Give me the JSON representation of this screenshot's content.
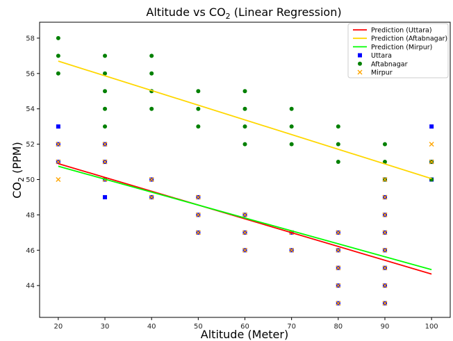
{
  "chart_data": {
    "type": "scatter",
    "title": "Altitude vs CO",
    "title_sub": "2",
    "title_suffix": " (Linear Regression)",
    "xlabel": "Altitude (Meter)",
    "ylabel": "CO",
    "ylabel_sub": "2",
    "ylabel_suffix": " (PPM)",
    "xlim": [
      16,
      104
    ],
    "ylim": [
      42.2,
      58.9
    ],
    "xticks": [
      20,
      30,
      40,
      50,
      60,
      70,
      80,
      90,
      100
    ],
    "yticks": [
      44,
      46,
      48,
      50,
      52,
      54,
      56,
      58
    ],
    "grid": false,
    "legend_position": "top-right",
    "regression_lines": [
      {
        "name": "Prediction (Uttara)",
        "color": "#ff0000",
        "x": [
          20,
          100
        ],
        "y": [
          50.9,
          44.65
        ]
      },
      {
        "name": "Prediction (Aftabnagar)",
        "color": "#ffd700",
        "x": [
          20,
          100
        ],
        "y": [
          56.7,
          50.05
        ]
      },
      {
        "name": "Prediction (Mirpur)",
        "color": "#00ff00",
        "x": [
          20,
          100
        ],
        "y": [
          50.75,
          44.9
        ]
      }
    ],
    "series": [
      {
        "name": "Uttara",
        "marker": "square",
        "color": "#0000ff",
        "points": [
          [
            20,
            53
          ],
          [
            20,
            52
          ],
          [
            20,
            51
          ],
          [
            30,
            52
          ],
          [
            30,
            51
          ],
          [
            30,
            50
          ],
          [
            30,
            49
          ],
          [
            40,
            50
          ],
          [
            40,
            49
          ],
          [
            50,
            49
          ],
          [
            50,
            48
          ],
          [
            50,
            47
          ],
          [
            60,
            48
          ],
          [
            60,
            47
          ],
          [
            60,
            46
          ],
          [
            70,
            47
          ],
          [
            70,
            46
          ],
          [
            80,
            47
          ],
          [
            80,
            46
          ],
          [
            80,
            45
          ],
          [
            80,
            44
          ],
          [
            80,
            43
          ],
          [
            90,
            50
          ],
          [
            90,
            49
          ],
          [
            90,
            48
          ],
          [
            90,
            47
          ],
          [
            90,
            46
          ],
          [
            90,
            45
          ],
          [
            90,
            44
          ],
          [
            90,
            43
          ],
          [
            100,
            53
          ],
          [
            100,
            51
          ],
          [
            100,
            50
          ]
        ]
      },
      {
        "name": "Aftabnagar",
        "marker": "circle",
        "color": "#008000",
        "points": [
          [
            20,
            58
          ],
          [
            20,
            57
          ],
          [
            20,
            56
          ],
          [
            30,
            57
          ],
          [
            30,
            56
          ],
          [
            30,
            55
          ],
          [
            30,
            54
          ],
          [
            30,
            53
          ],
          [
            40,
            57
          ],
          [
            40,
            56
          ],
          [
            40,
            55
          ],
          [
            40,
            54
          ],
          [
            50,
            55
          ],
          [
            50,
            54
          ],
          [
            50,
            53
          ],
          [
            60,
            55
          ],
          [
            60,
            54
          ],
          [
            60,
            53
          ],
          [
            60,
            52
          ],
          [
            70,
            54
          ],
          [
            70,
            53
          ],
          [
            70,
            52
          ],
          [
            80,
            53
          ],
          [
            80,
            52
          ],
          [
            80,
            51
          ],
          [
            90,
            52
          ],
          [
            90,
            51
          ],
          [
            90,
            50
          ],
          [
            100,
            51
          ],
          [
            100,
            50
          ]
        ]
      },
      {
        "name": "Mirpur",
        "marker": "x",
        "color": "#ffa500",
        "points": [
          [
            20,
            52
          ],
          [
            20,
            51
          ],
          [
            20,
            50
          ],
          [
            30,
            52
          ],
          [
            30,
            51
          ],
          [
            30,
            50
          ],
          [
            40,
            50
          ],
          [
            40,
            49
          ],
          [
            50,
            49
          ],
          [
            50,
            48
          ],
          [
            50,
            47
          ],
          [
            60,
            48
          ],
          [
            60,
            47
          ],
          [
            60,
            46
          ],
          [
            70,
            47
          ],
          [
            70,
            46
          ],
          [
            80,
            47
          ],
          [
            80,
            46
          ],
          [
            80,
            45
          ],
          [
            80,
            44
          ],
          [
            80,
            43
          ],
          [
            90,
            50
          ],
          [
            90,
            49
          ],
          [
            90,
            48
          ],
          [
            90,
            47
          ],
          [
            90,
            46
          ],
          [
            90,
            45
          ],
          [
            90,
            44
          ],
          [
            90,
            43
          ],
          [
            100,
            52
          ],
          [
            100,
            51
          ]
        ]
      }
    ]
  }
}
